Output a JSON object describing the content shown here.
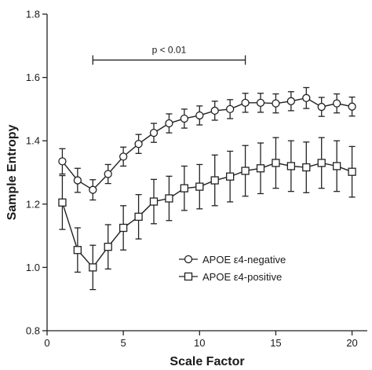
{
  "chart_data": {
    "type": "line",
    "xlabel": "Scale Factor",
    "ylabel": "Sample Entropy",
    "xlim": [
      0,
      21
    ],
    "ylim": [
      0.8,
      1.8
    ],
    "xticks": [
      0,
      5,
      10,
      15,
      20
    ],
    "yticks": [
      0.8,
      1.0,
      1.2,
      1.4,
      1.6,
      1.8
    ],
    "grid": false,
    "legend_position": "center-right",
    "x": [
      1,
      2,
      3,
      4,
      5,
      6,
      7,
      8,
      9,
      10,
      11,
      12,
      13,
      14,
      15,
      16,
      17,
      18,
      19,
      20
    ],
    "series": [
      {
        "name": "APOE ε4-negative",
        "marker": "circle",
        "values": [
          1.335,
          1.275,
          1.245,
          1.295,
          1.35,
          1.39,
          1.425,
          1.455,
          1.47,
          1.48,
          1.495,
          1.5,
          1.52,
          1.52,
          1.518,
          1.525,
          1.535,
          1.507,
          1.518,
          1.508
        ],
        "errors": [
          0.04,
          0.038,
          0.032,
          0.03,
          0.03,
          0.03,
          0.03,
          0.03,
          0.03,
          0.03,
          0.03,
          0.03,
          0.03,
          0.03,
          0.03,
          0.03,
          0.033,
          0.03,
          0.03,
          0.03
        ]
      },
      {
        "name": "APOE ε4-positive",
        "marker": "square",
        "values": [
          1.205,
          1.055,
          1.0,
          1.065,
          1.125,
          1.16,
          1.208,
          1.218,
          1.25,
          1.255,
          1.275,
          1.287,
          1.305,
          1.313,
          1.33,
          1.32,
          1.316,
          1.33,
          1.32,
          1.302
        ],
        "errors": [
          0.085,
          0.07,
          0.07,
          0.07,
          0.07,
          0.07,
          0.07,
          0.07,
          0.07,
          0.07,
          0.08,
          0.08,
          0.08,
          0.08,
          0.08,
          0.08,
          0.08,
          0.08,
          0.08,
          0.08
        ]
      }
    ],
    "annotation": {
      "text": "p < 0.01",
      "x_start": 3,
      "x_end": 13,
      "y": 1.655
    }
  }
}
